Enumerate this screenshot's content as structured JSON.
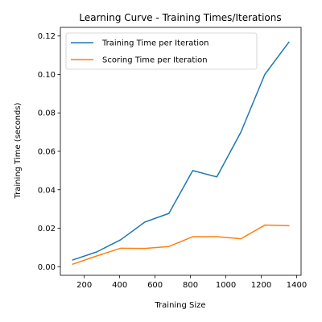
{
  "chart_data": {
    "type": "line",
    "title": "Learning Curve - Training Times/Iterations",
    "xlabel": "Training Size",
    "ylabel": "Training Time (seconds)",
    "xlim": [
      65,
      1425
    ],
    "ylim": [
      -0.0045,
      0.1245
    ],
    "xticks": [
      200,
      400,
      600,
      800,
      1000,
      1200,
      1400
    ],
    "yticks": [
      0.0,
      0.02,
      0.04,
      0.06,
      0.08,
      0.1,
      0.12
    ],
    "ytick_labels": [
      "0.00",
      "0.02",
      "0.04",
      "0.06",
      "0.08",
      "0.10",
      "0.12"
    ],
    "grid": false,
    "legend_position": "upper-left",
    "x": [
      135,
      271,
      406,
      542,
      678,
      813,
      949,
      1085,
      1220,
      1356
    ],
    "series": [
      {
        "name": "Training Time per Iteration",
        "color": "#1f77b4",
        "values": [
          0.0035,
          0.0077,
          0.014,
          0.0232,
          0.0277,
          0.05,
          0.0467,
          0.07,
          0.1,
          0.1168
        ]
      },
      {
        "name": "Scoring Time per Iteration",
        "color": "#ff7f0e",
        "values": [
          0.0013,
          0.0056,
          0.0096,
          0.0095,
          0.0105,
          0.0156,
          0.0156,
          0.0145,
          0.0216,
          0.0213
        ]
      }
    ]
  }
}
